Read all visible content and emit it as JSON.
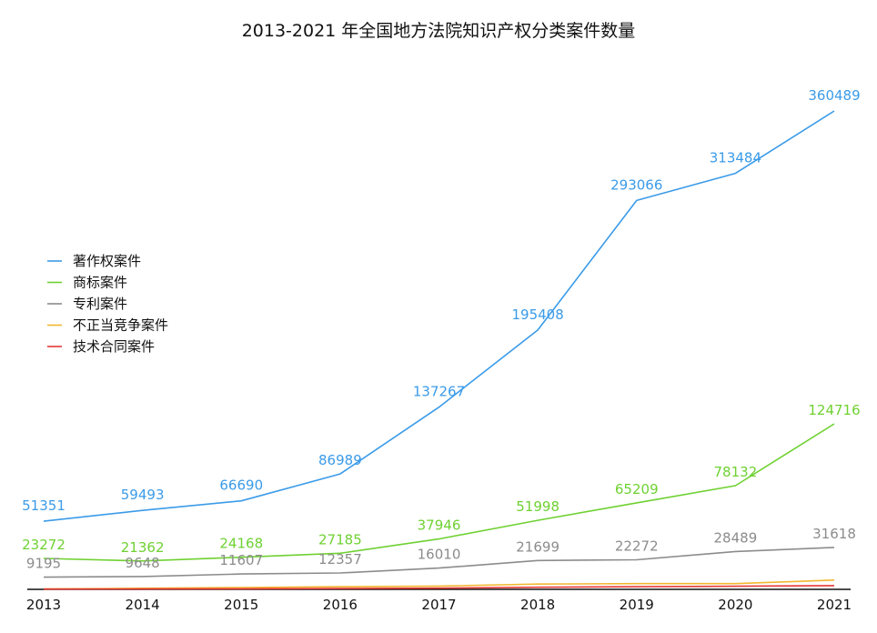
{
  "chart_data": {
    "type": "line",
    "title": "2013-2021 年全国地方法院知识产权分类案件数量",
    "xlabel": "",
    "ylabel": "",
    "categories": [
      "2013",
      "2014",
      "2015",
      "2016",
      "2017",
      "2018",
      "2019",
      "2020",
      "2021"
    ],
    "ylim": [
      0,
      360489
    ],
    "grid": false,
    "legend": "left",
    "series": [
      {
        "name": "著作权案件",
        "color": "#3b9be8",
        "values": [
          51351,
          59493,
          66690,
          86989,
          137267,
          195408,
          293066,
          313484,
          360489
        ],
        "labels": [
          "51351",
          "59493",
          "66690",
          "86989",
          "137267",
          "195408",
          "293066",
          "313484",
          "360489"
        ]
      },
      {
        "name": "商标案件",
        "color": "#6fd132",
        "values": [
          23272,
          21362,
          24168,
          27185,
          37946,
          51998,
          65209,
          78132,
          124716
        ],
        "labels": [
          "23272",
          "21362",
          "24168",
          "27185",
          "37946",
          "51998",
          "65209",
          "78132",
          "124716"
        ]
      },
      {
        "name": "专利案件",
        "color": "#8c8c8c",
        "values": [
          9195,
          9648,
          11607,
          12357,
          16010,
          21699,
          22272,
          28489,
          31618
        ],
        "labels": [
          "9195",
          "9648",
          "11607",
          "12357",
          "16010",
          "21699",
          "22272",
          "28489",
          "31618"
        ]
      },
      {
        "name": "不正当竞争案件",
        "color": "#f2b630",
        "values": [
          300,
          800,
          1400,
          2000,
          2500,
          4000,
          4300,
          4300,
          7000
        ],
        "labels": []
      },
      {
        "name": "技术合同案件",
        "color": "#e53935",
        "values": [
          200,
          300,
          400,
          600,
          900,
          1600,
          2000,
          2300,
          2800
        ],
        "labels": []
      }
    ]
  }
}
